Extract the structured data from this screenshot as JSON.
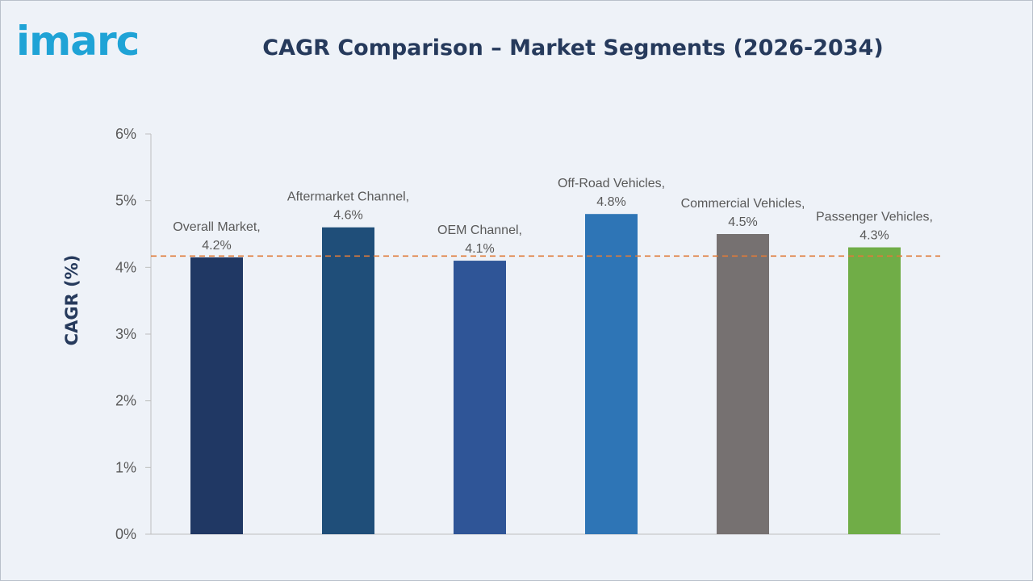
{
  "logo": {
    "text": "imarc"
  },
  "chart_data": {
    "type": "bar",
    "title": "CAGR Comparison – Market Segments (2026-2034)",
    "xlabel": "",
    "ylabel": "CAGR (%)",
    "ylim": [
      0,
      6
    ],
    "yticks": [
      {
        "value": 0,
        "label": "0%"
      },
      {
        "value": 1,
        "label": "1%"
      },
      {
        "value": 2,
        "label": "2%"
      },
      {
        "value": 3,
        "label": "3%"
      },
      {
        "value": 4,
        "label": "4%"
      },
      {
        "value": 5,
        "label": "5%"
      },
      {
        "value": 6,
        "label": "6%"
      }
    ],
    "grid": false,
    "legend": "none",
    "categories": [
      "Overall Market",
      "Aftermarket Channel",
      "OEM Channel",
      "Off-Road Vehicles",
      "Commercial Vehicles",
      "Passenger Vehicles"
    ],
    "values": [
      4.15,
      4.6,
      4.1,
      4.8,
      4.5,
      4.3
    ],
    "data_labels": [
      [
        "Overall Market,",
        "4.2%"
      ],
      [
        "Aftermarket Channel,",
        "4.6%"
      ],
      [
        "OEM Channel,",
        "4.1%"
      ],
      [
        "Off-Road Vehicles,",
        "4.8%"
      ],
      [
        "Commercial Vehicles,",
        "4.5%"
      ],
      [
        "Passenger Vehicles,",
        "4.3%"
      ]
    ],
    "bar_colors": [
      "#203864",
      "#1f4e79",
      "#2f5597",
      "#2e75b6",
      "#767171",
      "#70ad47"
    ],
    "reference_line": {
      "value": 4.17,
      "style": "dashed",
      "color": "#e07b39"
    }
  }
}
